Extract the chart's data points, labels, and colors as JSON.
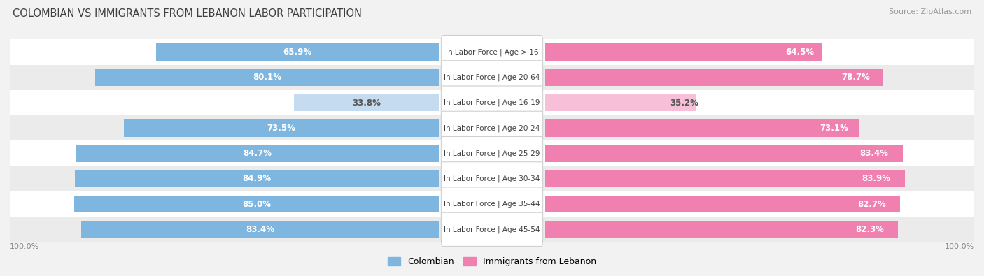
{
  "title": "COLOMBIAN VS IMMIGRANTS FROM LEBANON LABOR PARTICIPATION",
  "source": "Source: ZipAtlas.com",
  "categories": [
    "In Labor Force | Age > 16",
    "In Labor Force | Age 20-64",
    "In Labor Force | Age 16-19",
    "In Labor Force | Age 20-24",
    "In Labor Force | Age 25-29",
    "In Labor Force | Age 30-34",
    "In Labor Force | Age 35-44",
    "In Labor Force | Age 45-54"
  ],
  "colombian": [
    65.9,
    80.1,
    33.8,
    73.5,
    84.7,
    84.9,
    85.0,
    83.4
  ],
  "lebanon": [
    64.5,
    78.7,
    35.2,
    73.1,
    83.4,
    83.9,
    82.7,
    82.3
  ],
  "colombian_color_full": "#7EB6E0",
  "colombian_color_light": "#C5DCF0",
  "lebanon_color_full": "#F080B0",
  "lebanon_color_light": "#F8C0D8",
  "row_colors": [
    "#FFFFFF",
    "#EBEBEB"
  ],
  "label_color_white": "#FFFFFF",
  "label_color_dark": "#555555",
  "title_color": "#404040",
  "source_color": "#999999",
  "bottom_label": "100.0%",
  "legend_colombian": "Colombian",
  "legend_lebanon": "Immigrants from Lebanon",
  "threshold": 50.0
}
